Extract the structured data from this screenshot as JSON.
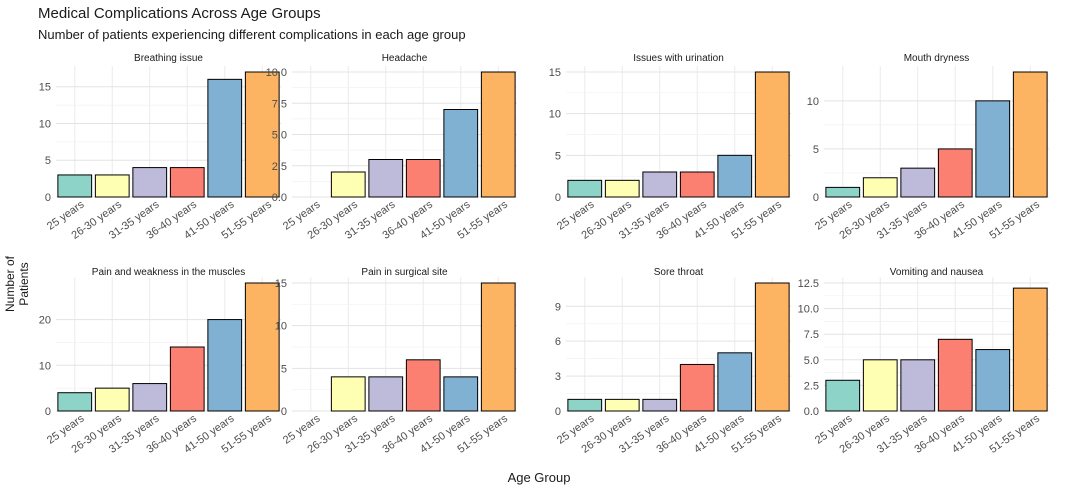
{
  "title": "Medical Complications Across Age Groups",
  "subtitle": "Number of patients experiencing different complications in each age group",
  "chart_data": {
    "type": "bar",
    "xlabel": "Age Group",
    "ylabel": "Number of Patients",
    "categories": [
      "25 years",
      "26-30 years",
      "31-35 years",
      "36-40 years",
      "41-50 years",
      "51-55 years"
    ],
    "colors": [
      "#8dd3c7",
      "#ffffb3",
      "#bebada",
      "#fb8072",
      "#80b1d3",
      "#fdb462"
    ],
    "grid": true,
    "facets": [
      {
        "title": "Breathing issue",
        "values": [
          3,
          3,
          4,
          4,
          16,
          17
        ],
        "ylim": [
          0,
          17
        ],
        "ticks": [
          "0",
          "5",
          "10",
          "15"
        ]
      },
      {
        "title": "Headache",
        "values": [
          0,
          2,
          3,
          3,
          7,
          10
        ],
        "ylim": [
          0,
          10
        ],
        "ticks": [
          "0.0",
          "2.5",
          "5.0",
          "7.5",
          "10.0"
        ]
      },
      {
        "title": "Issues with urination",
        "values": [
          2,
          2,
          3,
          3,
          5,
          15
        ],
        "ylim": [
          0,
          15
        ],
        "ticks": [
          "0",
          "5",
          "10",
          "15"
        ]
      },
      {
        "title": "Mouth dryness",
        "values": [
          1,
          2,
          3,
          5,
          10,
          13
        ],
        "ylim": [
          0,
          13
        ],
        "ticks": [
          "0",
          "5",
          "10"
        ]
      },
      {
        "title": "Pain and weakness in the muscles",
        "values": [
          4,
          5,
          6,
          14,
          20,
          28
        ],
        "ylim": [
          0,
          28
        ],
        "ticks": [
          "0",
          "10",
          "20"
        ]
      },
      {
        "title": "Pain in surgical site",
        "values": [
          0,
          4,
          4,
          6,
          4,
          15
        ],
        "ylim": [
          0,
          15
        ],
        "ticks": [
          "0",
          "5",
          "10",
          "15"
        ]
      },
      {
        "title": "Sore throat",
        "values": [
          1,
          1,
          1,
          4,
          5,
          11
        ],
        "ylim": [
          0,
          11
        ],
        "ticks": [
          "0",
          "3",
          "6",
          "9"
        ]
      },
      {
        "title": "Vomiting and nausea",
        "values": [
          3,
          5,
          5,
          7,
          6,
          12
        ],
        "ylim": [
          0,
          12.5
        ],
        "ticks": [
          "0.0",
          "2.5",
          "5.0",
          "7.5",
          "10.0",
          "12.5"
        ]
      }
    ]
  }
}
